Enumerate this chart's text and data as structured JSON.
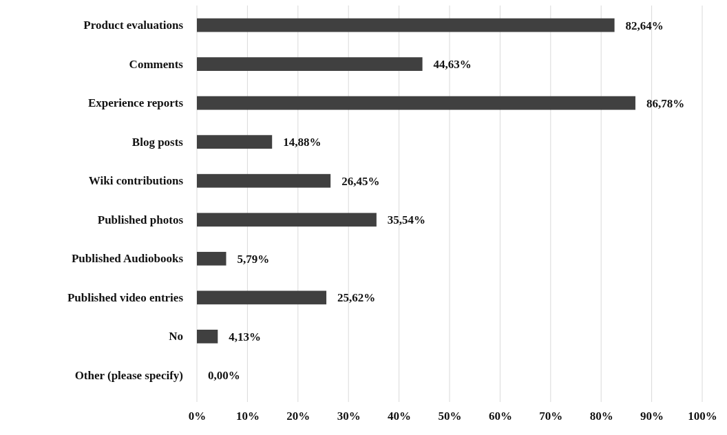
{
  "chart_data": {
    "type": "bar",
    "orientation": "horizontal",
    "categories": [
      "Product evaluations",
      "Comments",
      "Experience reports",
      "Blog posts",
      "Wiki contributions",
      "Published photos",
      "Published Audiobooks",
      "Published video entries",
      "No",
      "Other (please specify)"
    ],
    "values": [
      82.64,
      44.63,
      86.78,
      14.88,
      26.45,
      35.54,
      5.79,
      25.62,
      4.13,
      0
    ],
    "value_labels": [
      "82,64%",
      "44,63%",
      "86,78%",
      "14,88%",
      "26,45%",
      "35,54%",
      "5,79%",
      "25,62%",
      "4,13%",
      "0,00%"
    ],
    "color": "#404040",
    "xlim": [
      0,
      100
    ],
    "xticks": [
      {
        "value": 0,
        "label": "0%"
      },
      {
        "value": 10,
        "label": "10%"
      },
      {
        "value": 20,
        "label": "20%"
      },
      {
        "value": 30,
        "label": "30%"
      },
      {
        "value": 40,
        "label": "40%"
      },
      {
        "value": 50,
        "label": "50%"
      },
      {
        "value": 60,
        "label": "60%"
      },
      {
        "value": 70,
        "label": "70%"
      },
      {
        "value": 80,
        "label": "80%"
      },
      {
        "value": 90,
        "label": "90%"
      },
      {
        "value": 100,
        "label": "100%"
      }
    ],
    "grid": "x"
  }
}
